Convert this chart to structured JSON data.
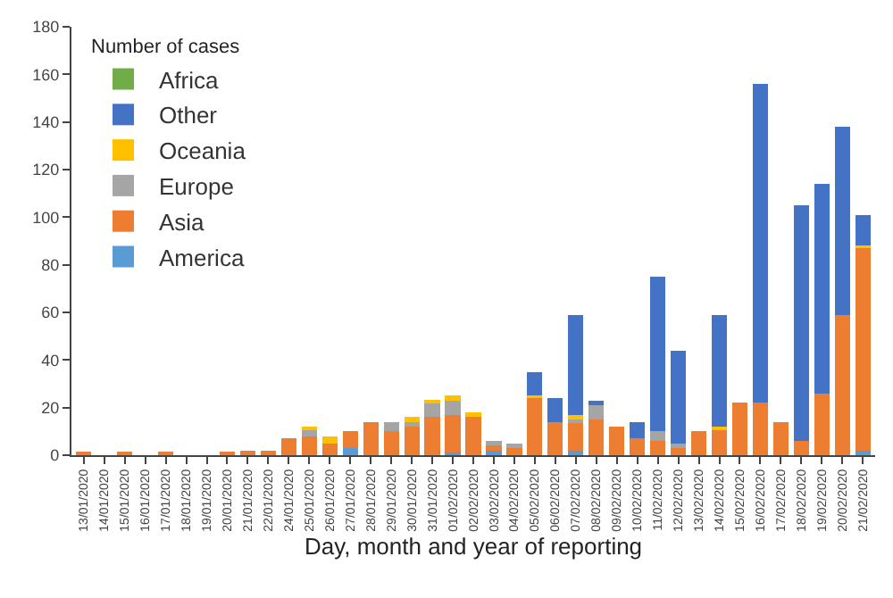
{
  "chart_data": {
    "type": "bar",
    "stacked": true,
    "xlabel": "Day, month and year of reporting",
    "legend_title": "Number of cases",
    "legend": "top left",
    "categories": [
      "13/01/2020",
      "14/01/2020",
      "15/01/2020",
      "16/01/2020",
      "17/01/2020",
      "18/01/2020",
      "19/01/2020",
      "20/01/2020",
      "21/01/2020",
      "22/01/2020",
      "24/01/2020",
      "25/01/2020",
      "26/01/2020",
      "27/01/2020",
      "28/01/2020",
      "29/01/2020",
      "30/01/2020",
      "31/01/2020",
      "01/02/2020",
      "02/02/2020",
      "03/02/2020",
      "04/02/2020",
      "05/02/2020",
      "06/02/2020",
      "07/02/2020",
      "08/02/2020",
      "09/02/2020",
      "10/02/2020",
      "11/02/2020",
      "12/02/2020",
      "13/02/2020",
      "14/02/2020",
      "15/02/2020",
      "16/02/2020",
      "17/02/2020",
      "18/02/2020",
      "19/02/2020",
      "20/02/2020",
      "21/02/2020"
    ],
    "ylim": [
      0,
      180
    ],
    "yticks": [
      0,
      20,
      40,
      60,
      80,
      100,
      120,
      140,
      160,
      180
    ],
    "series": [
      {
        "name": "America",
        "color": "#5b9bd5",
        "values": [
          0,
          0,
          0,
          0,
          0,
          0,
          0,
          0,
          0,
          0,
          0,
          0,
          0,
          3,
          0,
          0,
          0,
          0,
          1,
          0,
          2,
          0,
          0,
          0,
          2,
          0,
          0,
          0,
          0,
          0,
          0,
          0,
          0,
          0,
          0,
          0,
          0,
          0,
          2
        ]
      },
      {
        "name": "Asia",
        "color": "#ed7d31",
        "values": [
          1,
          0,
          1,
          0,
          1,
          0,
          0,
          1,
          2,
          2,
          7,
          8,
          5,
          7,
          14,
          10,
          12,
          16,
          16,
          16,
          2,
          3,
          24,
          14,
          12,
          15,
          12,
          7,
          6,
          3,
          10,
          11,
          22,
          22,
          14,
          6,
          26,
          59,
          85
        ]
      },
      {
        "name": "Europe",
        "color": "#a5a5a5",
        "values": [
          0,
          0,
          0,
          0,
          0,
          0,
          0,
          0,
          0,
          0,
          0,
          3,
          0,
          0,
          0,
          4,
          2,
          6,
          6,
          0,
          2,
          2,
          0,
          0,
          1,
          6,
          0,
          0,
          4,
          2,
          0,
          0,
          0,
          0,
          0,
          0,
          0,
          0,
          0
        ]
      },
      {
        "name": "Oceania",
        "color": "#ffc000",
        "values": [
          0,
          0,
          0,
          0,
          0,
          0,
          0,
          0,
          0,
          0,
          0,
          1,
          3,
          0,
          0,
          0,
          2,
          1,
          2,
          2,
          0,
          0,
          1,
          0,
          2,
          0,
          0,
          0,
          0,
          0,
          0,
          1,
          0,
          0,
          0,
          0,
          0,
          0,
          1
        ]
      },
      {
        "name": "Other",
        "color": "#4472c4",
        "values": [
          0,
          0,
          0,
          0,
          0,
          0,
          0,
          0,
          0,
          0,
          0,
          0,
          0,
          0,
          0,
          0,
          0,
          0,
          0,
          0,
          0,
          0,
          10,
          10,
          42,
          2,
          0,
          7,
          65,
          39,
          0,
          47,
          0,
          134,
          0,
          99,
          88,
          79,
          13
        ]
      },
      {
        "name": "Africa",
        "color": "#70ad47",
        "values": [
          0,
          0,
          0,
          0,
          0,
          0,
          0,
          0,
          0,
          0,
          0,
          0,
          0,
          0,
          0,
          0,
          0,
          0,
          0,
          0,
          0,
          0,
          0,
          0,
          0,
          0,
          0,
          0,
          0,
          0,
          0,
          0,
          0,
          0,
          0,
          0,
          0,
          0,
          0
        ]
      }
    ]
  }
}
